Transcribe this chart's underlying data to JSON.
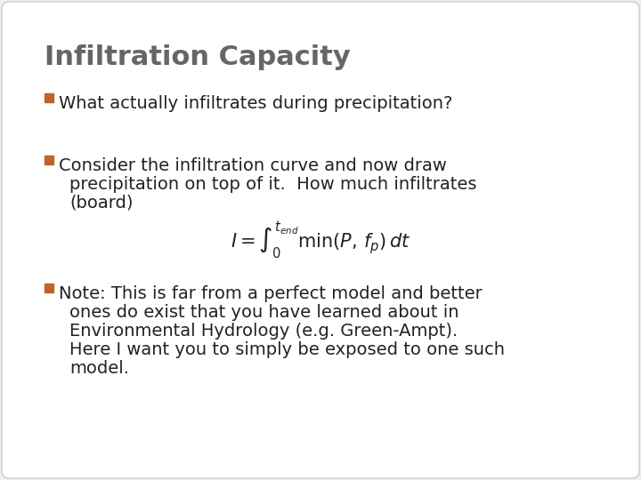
{
  "title": "Infiltration Capacity",
  "title_color": "#666666",
  "title_fontsize": 22,
  "background_color": "#f5f5f5",
  "bullet_color": "#c0622a",
  "text_color": "#222222",
  "bullet1": "What actually infiltrates during precipitation?",
  "bullet2_line1": "Consider the infiltration curve and now draw",
  "bullet2_line2": "precipitation on top of it.  How much infiltrates",
  "bullet2_line3": "(board)",
  "bullet3_line1": "Note: This is far from a perfect model and better",
  "bullet3_line2": "ones do exist that you have learned about in",
  "bullet3_line3": "Environmental Hydrology (e.g. Green-Ampt).",
  "bullet3_line4": "Here I want you to simply be exposed to one such",
  "bullet3_line5": "model.",
  "text_fontsize": 14,
  "bullet_char": "□",
  "slide_bg": "#f0f0f0"
}
